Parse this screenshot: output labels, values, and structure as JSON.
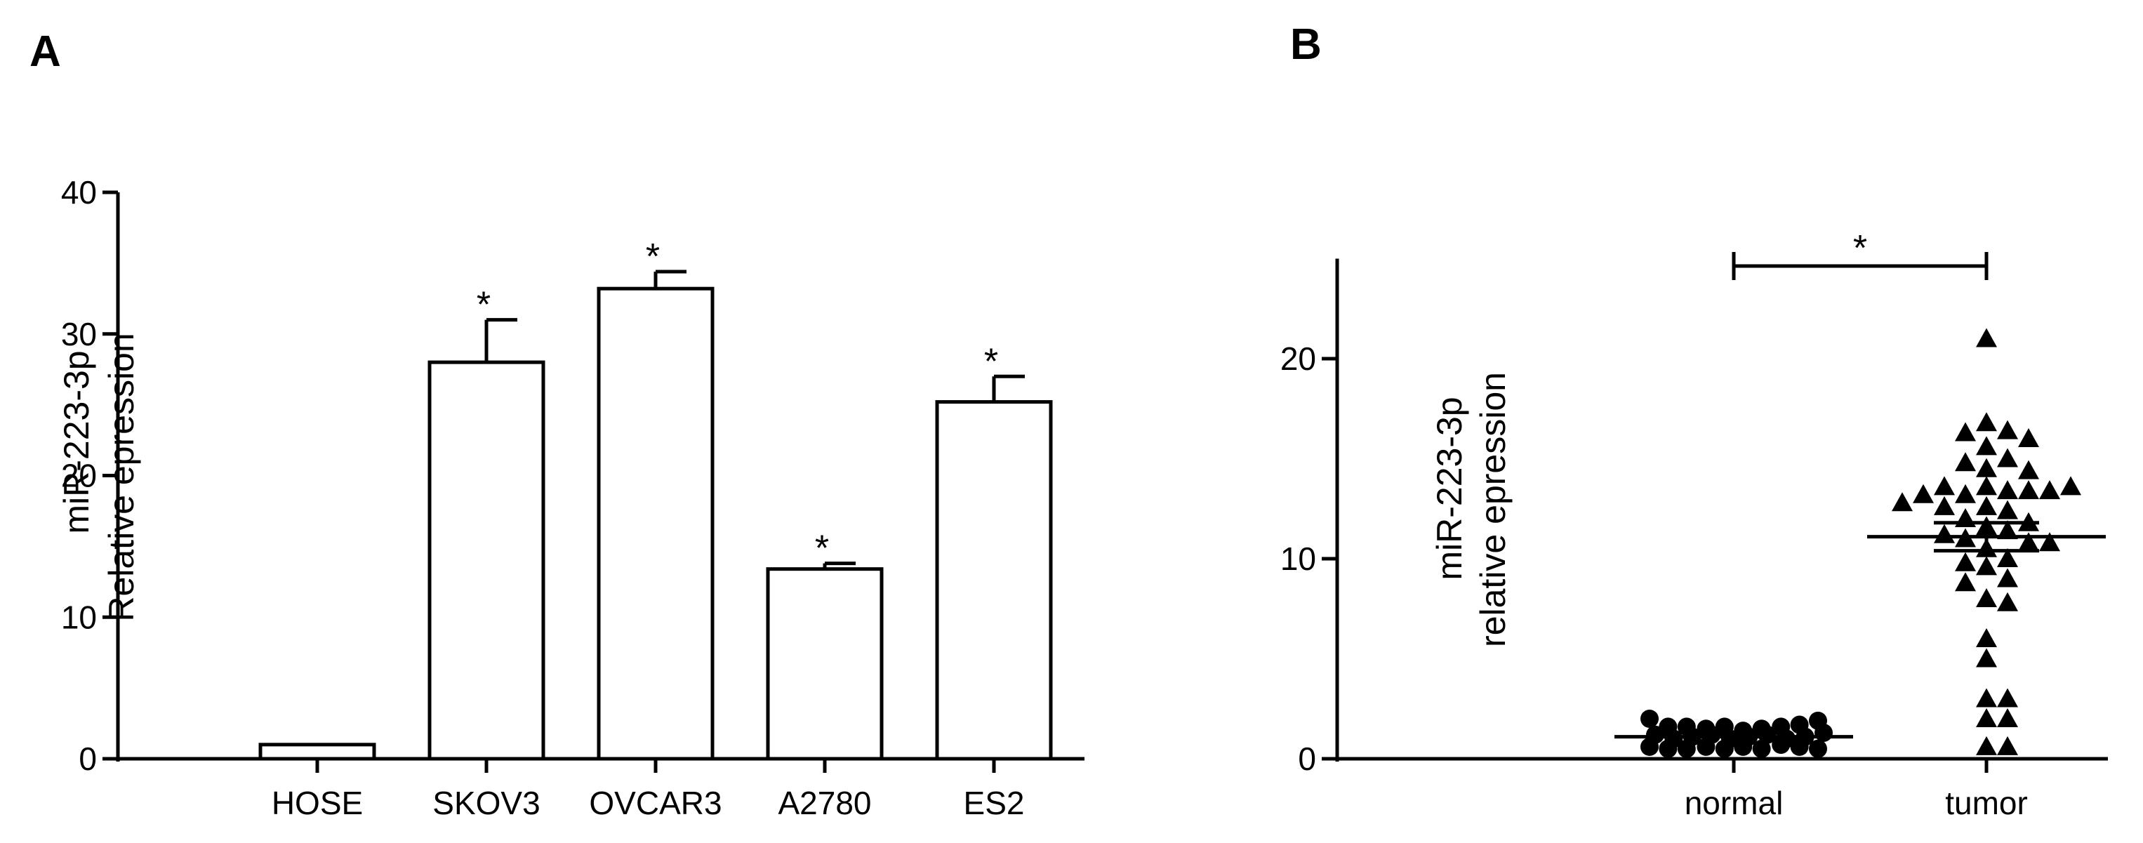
{
  "panels": {
    "a": {
      "letter": "A"
    },
    "b": {
      "letter": "B"
    }
  },
  "chart_data": [
    {
      "type": "bar",
      "categories": [
        "HOSE",
        "SKOV3",
        "OVCAR3",
        "A2780",
        "ES2"
      ],
      "values": [
        1.0,
        28.0,
        33.2,
        13.4,
        25.2
      ],
      "errors": [
        0.1,
        3.0,
        1.2,
        0.4,
        1.8
      ],
      "significance": [
        "",
        "*",
        "*",
        "*",
        "*"
      ],
      "ylabel_line1": "miR-223-3p",
      "ylabel_line2": "Relative epression",
      "ylim": [
        0,
        40
      ],
      "yticks": [
        "0",
        "10",
        "20",
        "30",
        "40"
      ],
      "ytick_values": [
        0,
        10,
        20,
        30,
        40
      ],
      "grid": false,
      "legend": "none"
    },
    {
      "type": "scatter",
      "categories": [
        "normal",
        "tumor"
      ],
      "series": [
        {
          "values": [
            2.0,
            1.6,
            1.6,
            1.5,
            1.6,
            1.4,
            1.5,
            1.6,
            1.7,
            1.9,
            1.2,
            1.0,
            1.1,
            1.2,
            1.0,
            1.1,
            1.2,
            1.0,
            1.1,
            1.3,
            0.6,
            0.5,
            0.5,
            0.6,
            0.5,
            0.6,
            0.5,
            0.7,
            0.6,
            0.5
          ],
          "marker": "circle"
        },
        {
          "values": [
            21.0,
            16.8,
            16.4,
            16.3,
            16.0,
            15.6,
            15.0,
            14.5,
            14.8,
            14.4,
            13.6,
            13.4,
            13.2,
            13.6,
            13.4,
            13.4,
            13.2,
            13.6,
            12.8,
            12.6,
            12.6,
            12.4,
            12.0,
            11.8,
            11.6,
            11.4,
            11.2,
            11.0,
            10.8,
            10.8,
            10.5,
            10.0,
            9.8,
            9.6,
            9.0,
            8.8,
            8.0,
            7.8,
            6.0,
            5.0,
            3.0,
            3.0,
            2.0,
            2.0,
            0.6,
            0.6
          ],
          "marker": "triangle"
        }
      ],
      "means": [
        1.1,
        11.1
      ],
      "sem": [
        0.1,
        0.7
      ],
      "significance_label": "*",
      "ylabel_line1": "miR-223-3p",
      "ylabel_line2": "relative epression",
      "ylim": [
        0,
        25
      ],
      "yticks": [
        "0",
        "10",
        "20"
      ],
      "ytick_values": [
        0,
        10,
        20
      ],
      "grid": false,
      "legend": "none"
    }
  ]
}
